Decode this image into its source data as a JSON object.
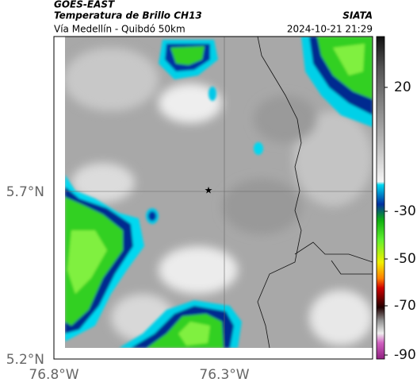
{
  "header": {
    "source": "GOES-EAST",
    "title": "Temperatura de Brillo CH13",
    "subtitle": "Vía Medellín - Quibdó 50km",
    "brand": "SIATA",
    "timestamp": "2024-10-21 21:29"
  },
  "map": {
    "lat_labels": [
      "5.7°N",
      "5.2°N"
    ],
    "lon_labels": [
      "76.8°W",
      "76.3°W"
    ],
    "colorbar_labels": [
      "20",
      "-30",
      "-50",
      "-70",
      "-90"
    ]
  }
}
